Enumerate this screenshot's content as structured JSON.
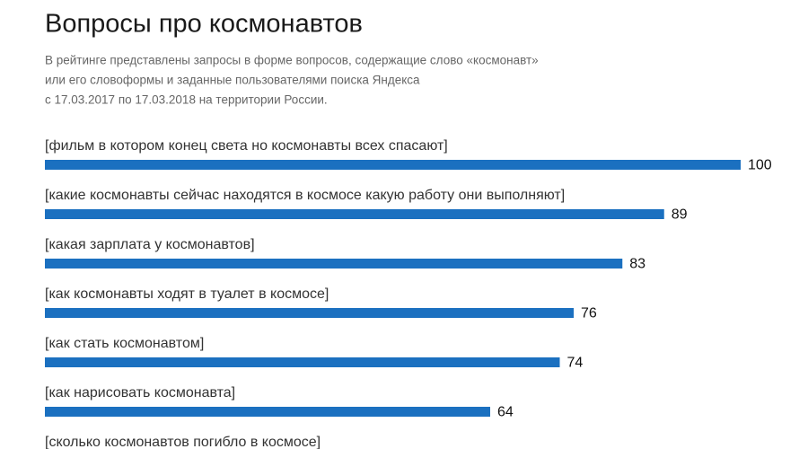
{
  "chart_data": {
    "type": "bar",
    "orientation": "horizontal",
    "title": "Вопросы про космонавтов",
    "subtitle": [
      "В рейтинге представлены запросы в форме вопросов, содержащие слово «космонавт»",
      "или его словоформы и заданные пользователями поиска Яндекса",
      "с 17.03.2017 по 17.03.2018 на территории России."
    ],
    "categories": [
      "[фильм в котором конец света но космонавты всех спасают]",
      "[какие космонавты сейчас находятся в космосе какую работу они выполняют]",
      "[какая зарплата у космонавтов]",
      "[как космонавты ходят в туалет в космосе]",
      "[как стать космонавтом]",
      "[как нарисовать космонавта]",
      "[сколько космонавтов погибло в космосе]"
    ],
    "values": [
      100,
      89,
      83,
      76,
      74,
      64,
      null
    ],
    "color": "#1b70c0",
    "xlim": [
      0,
      100
    ]
  }
}
